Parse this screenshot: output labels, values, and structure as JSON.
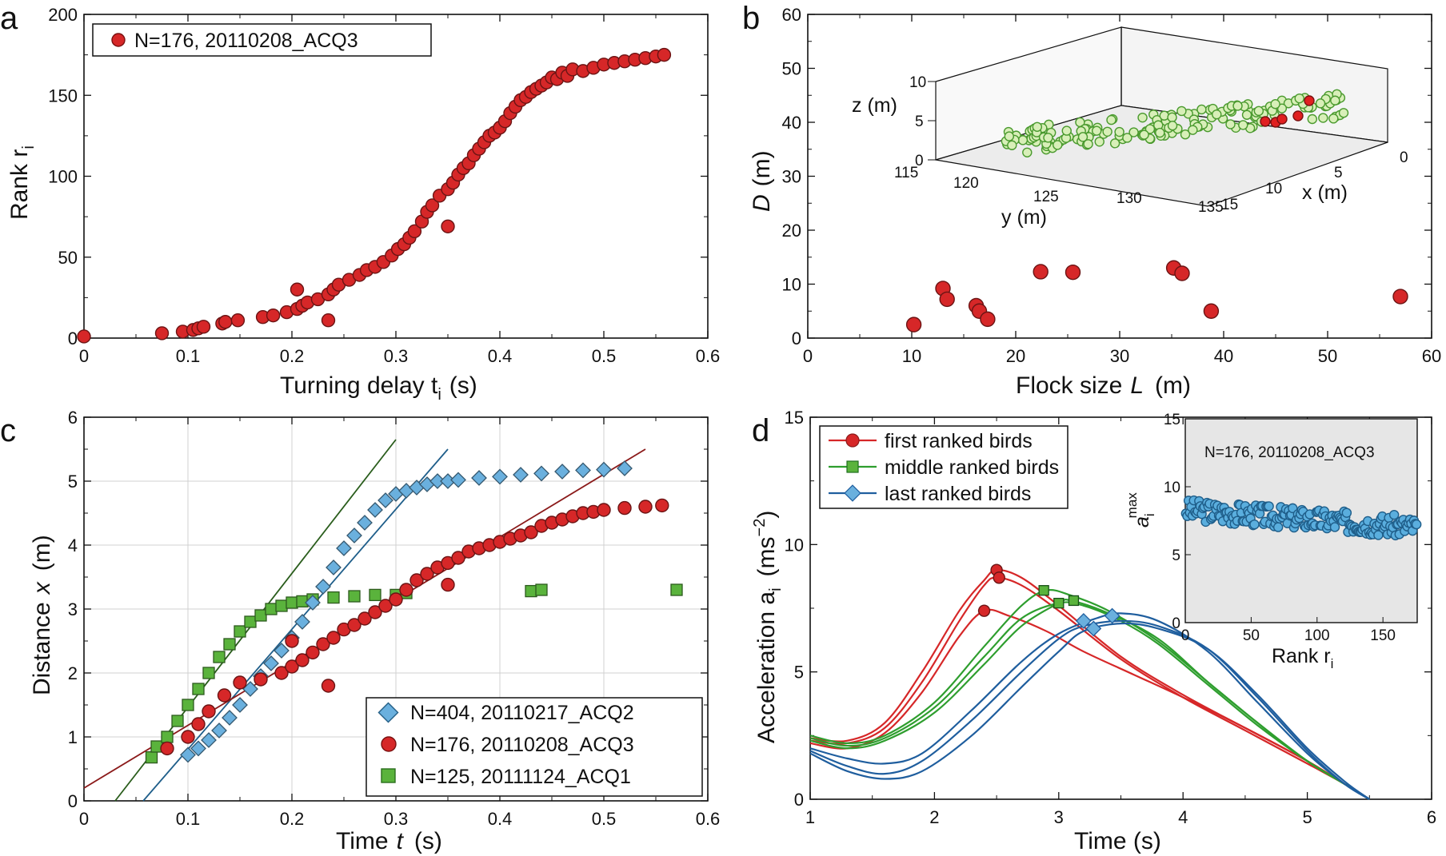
{
  "chart_data": [
    {
      "panel": "a",
      "type": "scatter",
      "xlabel": "Turning delay t",
      "xlabel_sub": "i",
      "xlabel_unit": "(s)",
      "ylabel": "Rank r",
      "ylabel_sub": "i",
      "xlim": [
        0,
        0.6
      ],
      "ylim": [
        0,
        200
      ],
      "xticks": [
        "0",
        "0.1",
        "0.2",
        "0.3",
        "0.4",
        "0.5",
        "0.6"
      ],
      "yticks": [
        "0",
        "50",
        "100",
        "150",
        "200"
      ],
      "legend": "N=176, 20110208_ACQ3",
      "color": "#d62728",
      "points": {
        "x": [
          0.0,
          0.075,
          0.095,
          0.105,
          0.11,
          0.115,
          0.133,
          0.136,
          0.148,
          0.172,
          0.182,
          0.195,
          0.205,
          0.21,
          0.215,
          0.225,
          0.235,
          0.24,
          0.245,
          0.255,
          0.265,
          0.272,
          0.28,
          0.288,
          0.296,
          0.302,
          0.308,
          0.313,
          0.318,
          0.325,
          0.33,
          0.335,
          0.342,
          0.35,
          0.355,
          0.36,
          0.365,
          0.37,
          0.375,
          0.38,
          0.385,
          0.39,
          0.395,
          0.4,
          0.405,
          0.41,
          0.415,
          0.42,
          0.425,
          0.43,
          0.435,
          0.44,
          0.445,
          0.45,
          0.455,
          0.46,
          0.465,
          0.47,
          0.48,
          0.49,
          0.5,
          0.51,
          0.52,
          0.53,
          0.54,
          0.55,
          0.558,
          0.35,
          0.235,
          0.205
        ],
        "y": [
          1,
          3,
          4,
          5,
          6,
          7,
          9,
          10,
          11,
          13,
          14,
          16,
          18,
          20,
          22,
          24,
          27,
          30,
          33,
          36,
          39,
          42,
          44,
          47,
          51,
          55,
          58,
          62,
          66,
          72,
          78,
          82,
          88,
          92,
          96,
          101,
          105,
          108,
          113,
          117,
          121,
          125,
          127,
          130,
          134,
          139,
          143,
          147,
          149,
          152,
          154,
          156,
          158,
          161,
          160,
          164,
          162,
          166,
          165,
          167,
          169,
          170,
          171,
          172,
          173,
          174,
          175,
          69,
          11,
          30
        ]
      }
    },
    {
      "panel": "b",
      "type": "scatter",
      "xlabel": "Flock size",
      "xlabel_var": "L",
      "xlabel_unit": "(m)",
      "ylabel": "D",
      "ylabel_unit": "(m)",
      "xlim": [
        0,
        60
      ],
      "ylim": [
        0,
        60
      ],
      "xticks": [
        "0",
        "10",
        "20",
        "30",
        "40",
        "50",
        "60"
      ],
      "yticks": [
        "0",
        "10",
        "20",
        "30",
        "40",
        "50",
        "60"
      ],
      "color": "#d62728",
      "points": {
        "x": [
          10.2,
          13.0,
          13.4,
          16.2,
          16.5,
          17.3,
          22.4,
          25.5,
          35.2,
          36.0,
          38.8,
          57.0
        ],
        "y": [
          2.5,
          9.2,
          7.2,
          6.0,
          5.0,
          3.5,
          12.3,
          12.2,
          13.0,
          12.0,
          5.0,
          7.7
        ]
      },
      "inset": {
        "type": "scatter3d",
        "x_label": "x (m)",
        "y_label": "y (m)",
        "z_label": "z (m)",
        "x_ticks": [
          "0",
          "5",
          "10",
          "15"
        ],
        "y_ticks": [
          "115",
          "120",
          "125",
          "130",
          "135"
        ],
        "z_ticks": [
          "0",
          "5",
          "10"
        ],
        "bird_color": "#d8efb8",
        "bird_edge": "#4a9a2e",
        "highlight_color": "#e02020"
      }
    },
    {
      "panel": "c",
      "type": "scatter",
      "xlabel": "Time",
      "xlabel_var": "t",
      "xlabel_unit": "(s)",
      "ylabel": "Distance",
      "ylabel_var": "x",
      "ylabel_unit": "(m)",
      "xlim": [
        0,
        0.6
      ],
      "ylim": [
        0,
        6
      ],
      "xticks": [
        "0",
        "0.1",
        "0.2",
        "0.3",
        "0.4",
        "0.5",
        "0.6"
      ],
      "yticks": [
        "0",
        "1",
        "2",
        "3",
        "4",
        "5",
        "6"
      ],
      "series": [
        {
          "name": "N=404, 20110217_ACQ2",
          "marker": "diamond",
          "color": "#6ab0de",
          "x": [
            0.1,
            0.11,
            0.12,
            0.13,
            0.14,
            0.15,
            0.16,
            0.17,
            0.18,
            0.19,
            0.2,
            0.21,
            0.22,
            0.23,
            0.24,
            0.25,
            0.26,
            0.27,
            0.28,
            0.29,
            0.3,
            0.31,
            0.32,
            0.33,
            0.34,
            0.35,
            0.36,
            0.38,
            0.4,
            0.42,
            0.44,
            0.46,
            0.48,
            0.5,
            0.52
          ],
          "y": [
            0.72,
            0.82,
            0.95,
            1.1,
            1.3,
            1.5,
            1.75,
            1.95,
            2.15,
            2.35,
            2.55,
            2.8,
            3.1,
            3.35,
            3.65,
            3.95,
            4.15,
            4.35,
            4.55,
            4.7,
            4.8,
            4.85,
            4.9,
            4.95,
            5.0,
            5.0,
            5.02,
            5.05,
            5.07,
            5.1,
            5.12,
            5.15,
            5.17,
            5.18,
            5.2
          ]
        },
        {
          "name": "N=176, 20110208_ACQ3",
          "marker": "circle",
          "color": "#d62728",
          "x": [
            0.08,
            0.1,
            0.11,
            0.12,
            0.135,
            0.15,
            0.17,
            0.19,
            0.2,
            0.21,
            0.22,
            0.23,
            0.24,
            0.25,
            0.26,
            0.27,
            0.28,
            0.29,
            0.3,
            0.31,
            0.32,
            0.33,
            0.34,
            0.35,
            0.36,
            0.37,
            0.38,
            0.39,
            0.4,
            0.41,
            0.42,
            0.43,
            0.44,
            0.45,
            0.46,
            0.47,
            0.48,
            0.49,
            0.5,
            0.52,
            0.54,
            0.556,
            0.2,
            0.235,
            0.35
          ],
          "y": [
            0.82,
            1.0,
            1.2,
            1.4,
            1.65,
            1.85,
            1.9,
            2.0,
            2.1,
            2.2,
            2.32,
            2.45,
            2.55,
            2.68,
            2.75,
            2.85,
            2.95,
            3.05,
            3.15,
            3.3,
            3.45,
            3.55,
            3.65,
            3.72,
            3.8,
            3.9,
            3.95,
            4.0,
            4.05,
            4.1,
            4.15,
            4.2,
            4.3,
            4.35,
            4.4,
            4.45,
            4.5,
            4.52,
            4.55,
            4.58,
            4.6,
            4.62,
            2.5,
            1.8,
            3.38
          ]
        },
        {
          "name": "N=125, 20111124_ACQ1",
          "marker": "square",
          "color": "#5ab33c",
          "x": [
            0.065,
            0.07,
            0.08,
            0.09,
            0.1,
            0.11,
            0.12,
            0.13,
            0.14,
            0.15,
            0.16,
            0.17,
            0.18,
            0.19,
            0.2,
            0.21,
            0.22,
            0.24,
            0.26,
            0.28,
            0.3,
            0.31,
            0.43,
            0.44,
            0.57
          ],
          "y": [
            0.68,
            0.85,
            1.0,
            1.25,
            1.5,
            1.75,
            2.0,
            2.25,
            2.45,
            2.65,
            2.8,
            2.9,
            3.0,
            3.05,
            3.1,
            3.12,
            3.15,
            3.18,
            3.2,
            3.22,
            3.22,
            3.25,
            3.28,
            3.3,
            3.3
          ]
        }
      ],
      "fit_lines": [
        {
          "color": "#2a5d1c",
          "x": [
            0.03,
            0.3
          ],
          "y": [
            0,
            5.65
          ]
        },
        {
          "color": "#1f5e8a",
          "x": [
            0.057,
            0.35
          ],
          "y": [
            0,
            5.5
          ]
        },
        {
          "color": "#8b1a1a",
          "x": [
            0.0,
            0.54
          ],
          "y": [
            0.2,
            5.5
          ]
        }
      ]
    },
    {
      "panel": "d",
      "type": "line",
      "xlabel": "Time (s)",
      "ylabel": "Acceleration a",
      "ylabel_sub": "i",
      "ylabel_unit": "(ms",
      "xlim": [
        1,
        6
      ],
      "ylim": [
        0,
        15
      ],
      "xticks": [
        "1",
        "2",
        "3",
        "4",
        "5",
        "6"
      ],
      "yticks": [
        "0",
        "5",
        "10",
        "15"
      ],
      "series": [
        {
          "name": "first ranked birds",
          "marker": "circle",
          "color": "#d62728",
          "curves": [
            {
              "x": [
                1.0,
                1.3,
                1.6,
                1.9,
                2.2,
                2.4,
                2.5,
                2.7,
                3.0,
                3.5,
                4.0,
                4.5,
                5.0,
                5.3,
                5.5
              ],
              "y": [
                2.4,
                2.3,
                3.0,
                5.0,
                7.4,
                8.6,
                9.0,
                8.7,
                7.6,
                5.6,
                4.1,
                2.8,
                1.5,
                0.6,
                0.0
              ]
            },
            {
              "x": [
                1.0,
                1.3,
                1.6,
                1.9,
                2.2,
                2.4,
                2.5,
                2.7,
                3.0,
                3.5,
                4.0,
                4.5,
                5.0,
                5.3,
                5.5
              ],
              "y": [
                2.3,
                2.2,
                2.8,
                4.6,
                7.0,
                8.4,
                8.7,
                8.4,
                7.4,
                5.5,
                4.0,
                2.7,
                1.4,
                0.6,
                0.0
              ]
            },
            {
              "x": [
                1.0,
                1.3,
                1.6,
                1.9,
                2.2,
                2.4,
                2.6,
                2.9,
                3.2,
                3.6,
                4.0,
                4.5,
                5.0,
                5.3,
                5.5
              ],
              "y": [
                2.2,
                2.0,
                2.6,
                4.2,
                6.4,
                7.4,
                7.2,
                6.6,
                5.8,
                4.9,
                4.0,
                2.8,
                1.5,
                0.6,
                0.0
              ]
            }
          ],
          "markers": {
            "x": [
              2.5,
              2.52,
              2.4
            ],
            "y": [
              9.0,
              8.7,
              7.4
            ]
          }
        },
        {
          "name": "middle ranked birds",
          "marker": "square",
          "color": "#2e9e2e",
          "curves": [
            {
              "x": [
                1.0,
                1.3,
                1.6,
                2.0,
                2.4,
                2.7,
                2.9,
                3.1,
                3.4,
                3.8,
                4.2,
                4.6,
                5.0,
                5.3,
                5.5
              ],
              "y": [
                2.5,
                2.2,
                2.5,
                3.8,
                6.0,
                7.6,
                8.2,
                8.0,
                7.4,
                6.2,
                4.6,
                3.0,
                1.5,
                0.6,
                0.0
              ]
            },
            {
              "x": [
                1.0,
                1.3,
                1.6,
                2.0,
                2.4,
                2.7,
                3.0,
                3.2,
                3.5,
                3.8,
                4.2,
                4.6,
                5.0,
                5.3,
                5.5
              ],
              "y": [
                2.4,
                2.1,
                2.4,
                3.6,
                5.6,
                7.1,
                7.7,
                7.6,
                7.0,
                6.1,
                4.5,
                2.9,
                1.5,
                0.6,
                0.0
              ]
            },
            {
              "x": [
                1.0,
                1.3,
                1.6,
                2.0,
                2.4,
                2.7,
                3.0,
                3.1,
                3.4,
                3.8,
                4.2,
                4.6,
                5.0,
                5.3,
                5.5
              ],
              "y": [
                2.3,
                2.0,
                2.3,
                3.4,
                5.3,
                6.8,
                7.7,
                7.8,
                7.3,
                6.3,
                4.6,
                3.0,
                1.5,
                0.6,
                0.0
              ]
            }
          ],
          "markers": {
            "x": [
              2.88,
              3.12,
              3.0
            ],
            "y": [
              8.2,
              7.8,
              7.7
            ]
          }
        },
        {
          "name": "last ranked birds",
          "marker": "diamond",
          "color": "#1f5e9e",
          "curves": [
            {
              "x": [
                1.0,
                1.3,
                1.6,
                1.9,
                2.3,
                2.7,
                3.0,
                3.3,
                3.5,
                3.8,
                4.2,
                4.6,
                5.0,
                5.3,
                5.5
              ],
              "y": [
                2.0,
                1.6,
                1.4,
                1.8,
                3.5,
                5.4,
                6.5,
                7.1,
                7.3,
                7.0,
                5.8,
                3.8,
                1.8,
                0.6,
                0.0
              ]
            },
            {
              "x": [
                1.0,
                1.3,
                1.6,
                1.9,
                2.3,
                2.7,
                3.0,
                3.2,
                3.5,
                3.8,
                4.2,
                4.6,
                5.0,
                5.3,
                5.5
              ],
              "y": [
                1.9,
                1.3,
                1.0,
                1.5,
                3.1,
                5.0,
                6.3,
                6.8,
                7.0,
                6.8,
                5.9,
                4.0,
                1.9,
                0.6,
                0.0
              ]
            },
            {
              "x": [
                1.0,
                1.3,
                1.6,
                1.9,
                2.3,
                2.7,
                3.0,
                3.2,
                3.5,
                3.8,
                4.2,
                4.6,
                5.0,
                5.3,
                5.5
              ],
              "y": [
                1.8,
                1.1,
                0.8,
                1.1,
                2.5,
                4.4,
                5.8,
                6.6,
                6.9,
                6.7,
                5.9,
                4.1,
                2.0,
                0.7,
                0.0
              ]
            }
          ],
          "markers": {
            "x": [
              3.43,
              3.2,
              3.28
            ],
            "y": [
              7.2,
              7.0,
              6.7
            ]
          }
        }
      ],
      "inset": {
        "type": "scatter",
        "title": "N=176, 20110208_ACQ3",
        "xlabel": "Rank r",
        "xlabel_sub": "i",
        "ylabel": "a",
        "ylabel_sub": "i",
        "ylabel_sup": "max",
        "xlim": [
          0,
          176
        ],
        "ylim": [
          0,
          15
        ],
        "xticks": [
          "0",
          "50",
          "100",
          "150"
        ],
        "yticks": [
          "0",
          "5",
          "10",
          "15"
        ],
        "color": "#5aaede",
        "trend": {
          "start": 8.3,
          "end": 7.0
        }
      }
    }
  ],
  "panel_labels": [
    "a",
    "b",
    "c",
    "d"
  ],
  "superscript_units": {
    "accel": "−2",
    "accel_close": ")"
  }
}
